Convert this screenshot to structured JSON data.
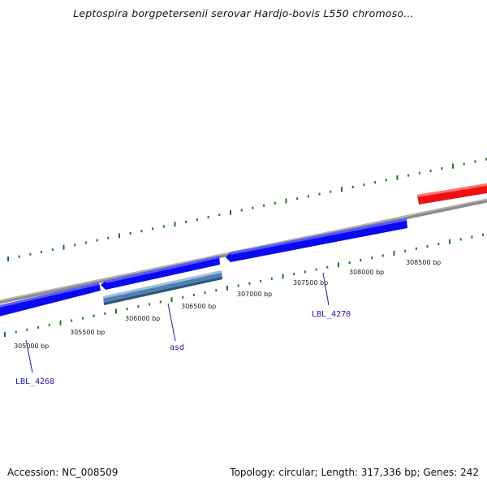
{
  "title": "Leptospira borgpetersenii serovar Hardjo-bovis L550 chromoso...",
  "footer": {
    "accession": "Accession: NC_008509",
    "summary": "Topology: circular; Length: 317,336 bp; Genes: 242"
  },
  "colors": {
    "backbone": "#8c8c8c",
    "forward_gene": "#0a0af0",
    "reverse_gene": "#0a0af0",
    "highlighted_gene": "#4f80b0",
    "other_feature": "#f00a0a",
    "tick": "#1c7a1c",
    "label_line": "#1a1aa8"
  },
  "scale_labels": [
    "305000 bp",
    "305500 bp",
    "306000 bp",
    "306500 bp",
    "307000 bp",
    "307500 bp",
    "308000 bp",
    "308500 bp"
  ],
  "gene_labels": [
    "LBL_4268",
    "asd",
    "LBL_4270"
  ]
}
